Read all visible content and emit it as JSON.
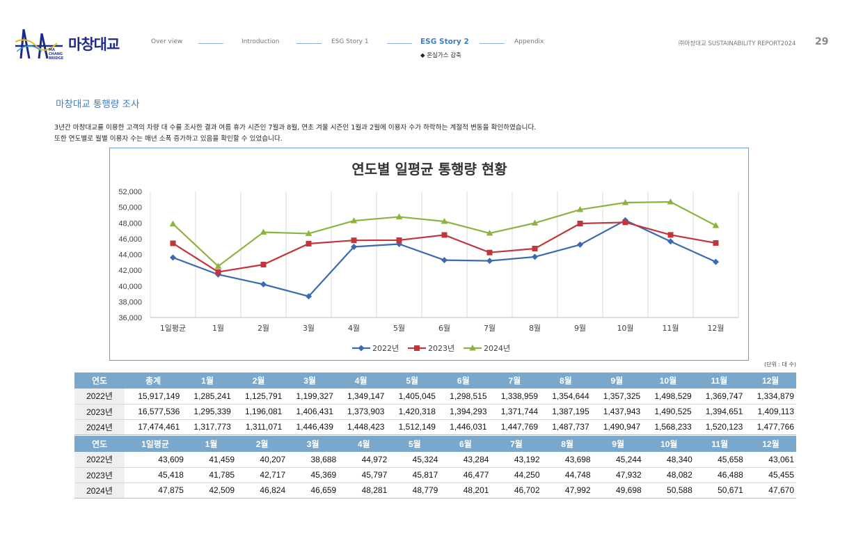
{
  "header": {
    "logo_text": "마창대교",
    "logo_sub": "MA CHANG BRIDGE",
    "nav": [
      "Over view",
      "Introduction",
      "ESG Story 1",
      "ESG Story 2",
      "Appendix"
    ],
    "nav_active_index": 3,
    "nav_sub": "◆ 온실가스 감축",
    "report": "㈜마창대교 SUSTAINABILITY REPORT2024",
    "page_number": "29"
  },
  "section": {
    "title": "마창대교 통행량 조사",
    "desc_line1": "3년간 마창대교를 이용한 고객의 차량 대 수를 조사한 결과 여름 휴가 시즌인 7월과 8월, 연초 겨울 시즌인 1월과 2월에 이용자 수가 하락하는 계절적 변동을 확인하였습니다.",
    "desc_line2": "또한 연도별로 월별 이용자 수는 매년 소폭 증가하고 있음을 확인할 수 있었습니다."
  },
  "chart_data": {
    "type": "line",
    "title": "연도별 일평균 통행량 현황",
    "categories": [
      "1일평균",
      "1월",
      "2월",
      "3월",
      "4월",
      "5월",
      "6월",
      "7월",
      "8월",
      "9월",
      "10월",
      "11월",
      "12월"
    ],
    "ylim": [
      36000,
      52000
    ],
    "yticks": [
      "36,000",
      "38,000",
      "40,000",
      "42,000",
      "44,000",
      "46,000",
      "48,000",
      "50,000",
      "52,000"
    ],
    "grid": "vertical",
    "legend_position": "bottom",
    "series": [
      {
        "name": "2022년",
        "color": "#3a6ab0",
        "marker": "diamond",
        "values": [
          43609,
          41459,
          40207,
          38688,
          44972,
          45324,
          43284,
          43192,
          43698,
          45244,
          48340,
          45658,
          43061
        ]
      },
      {
        "name": "2023년",
        "color": "#c0363a",
        "marker": "square",
        "values": [
          45418,
          41785,
          42717,
          45369,
          45797,
          45817,
          46477,
          44250,
          44748,
          47932,
          48082,
          46488,
          45455
        ]
      },
      {
        "name": "2024년",
        "color": "#8db33e",
        "marker": "triangle",
        "values": [
          47875,
          42509,
          46824,
          46659,
          48281,
          48779,
          48201,
          46702,
          47992,
          49698,
          50588,
          50671,
          47670
        ]
      }
    ]
  },
  "unit_label": "(단위 : 대 수)",
  "table1": {
    "headers": [
      "연도",
      "총계",
      "1월",
      "2월",
      "3월",
      "4월",
      "5월",
      "6월",
      "7월",
      "8월",
      "9월",
      "10월",
      "11월",
      "12월"
    ],
    "rows": [
      [
        "2022년",
        "15,917,149",
        "1,285,241",
        "1,125,791",
        "1,199,327",
        "1,349,147",
        "1,405,045",
        "1,298,515",
        "1,338,959",
        "1,354,644",
        "1,357,325",
        "1,498,529",
        "1,369,747",
        "1,334,879"
      ],
      [
        "2023년",
        "16,577,536",
        "1,295,339",
        "1,196,081",
        "1,406,431",
        "1,373,903",
        "1,420,318",
        "1,394,293",
        "1,371,744",
        "1,387,195",
        "1,437,943",
        "1,490,525",
        "1,394,651",
        "1,409,113"
      ],
      [
        "2024년",
        "17,474,461",
        "1,317,773",
        "1,311,071",
        "1,446,439",
        "1,448,423",
        "1,512,149",
        "1,446,031",
        "1,447,769",
        "1,487,737",
        "1,490,947",
        "1,568,233",
        "1,520,123",
        "1,477,766"
      ]
    ]
  },
  "table2": {
    "headers": [
      "연도",
      "1일평균",
      "1월",
      "2월",
      "3월",
      "4월",
      "5월",
      "6월",
      "7월",
      "8월",
      "9월",
      "10월",
      "11월",
      "12월"
    ],
    "rows": [
      [
        "2022년",
        "43,609",
        "41,459",
        "40,207",
        "38,688",
        "44,972",
        "45,324",
        "43,284",
        "43,192",
        "43,698",
        "45,244",
        "48,340",
        "45,658",
        "43,061"
      ],
      [
        "2023년",
        "45,418",
        "41,785",
        "42,717",
        "45,369",
        "45,797",
        "45,817",
        "46,477",
        "44,250",
        "44,748",
        "47,932",
        "48,082",
        "46,488",
        "45,455"
      ],
      [
        "2024년",
        "47,875",
        "42,509",
        "46,824",
        "46,659",
        "48,281",
        "48,779",
        "48,201",
        "46,702",
        "47,992",
        "49,698",
        "50,588",
        "50,671",
        "47,670"
      ]
    ]
  }
}
